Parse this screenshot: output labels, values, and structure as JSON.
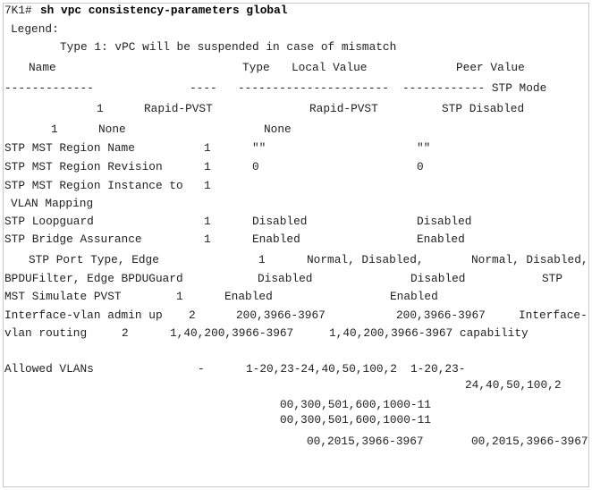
{
  "prompt": "7K1#",
  "command": "sh vpc consistency-parameters global",
  "lines": [
    [
      "Legend:"
    ],
    [
      "Type 1: vPC will be suspended in case of mismatch"
    ],
    [
      "Name",
      "Type",
      "Local Value",
      "Peer Value"
    ],
    [
      "-------------",
      "----",
      "----------------------",
      "------------ STP Mode"
    ],
    [
      "1",
      "Rapid-PVST",
      "Rapid-PVST",
      "STP Disabled"
    ],
    [
      "1",
      "None",
      "None"
    ],
    [
      "STP MST Region Name",
      "1",
      "\"\"",
      "\"\""
    ],
    [
      "STP MST Region Revision",
      "1",
      "0",
      "0"
    ],
    [
      "STP MST Region Instance to",
      "1"
    ],
    [
      "VLAN Mapping"
    ],
    [
      "STP Loopguard",
      "1",
      "Disabled",
      "Disabled"
    ],
    [
      "STP Bridge Assurance",
      "1",
      "Enabled",
      "Enabled"
    ],
    [
      "STP Port Type, Edge",
      "1",
      "Normal, Disabled,",
      "Normal, Disabled,"
    ],
    [
      "BPDUFilter, Edge BPDUGuard",
      "Disabled",
      "Disabled",
      "STP"
    ],
    [
      "MST Simulate PVST",
      "1",
      "Enabled",
      "Enabled"
    ],
    [
      "Interface-vlan admin up",
      "2",
      "200,3966-3967",
      "200,3966-3967",
      "Interface-"
    ],
    [
      "vlan routing",
      "2",
      "1,40,200,3966-3967",
      "1,40,200,3966-3967 capability"
    ],
    [
      "Allowed VLANs",
      "-",
      "1-20,23-24,40,50,100,2",
      "1-20,23-"
    ],
    [
      "24,40,50,100,2"
    ],
    [
      "00,300,501,600,1000-11"
    ],
    [
      "00,300,501,600,1000-11"
    ],
    [
      "00,2015,3966-3967",
      "00,2015,3966-3967"
    ]
  ]
}
